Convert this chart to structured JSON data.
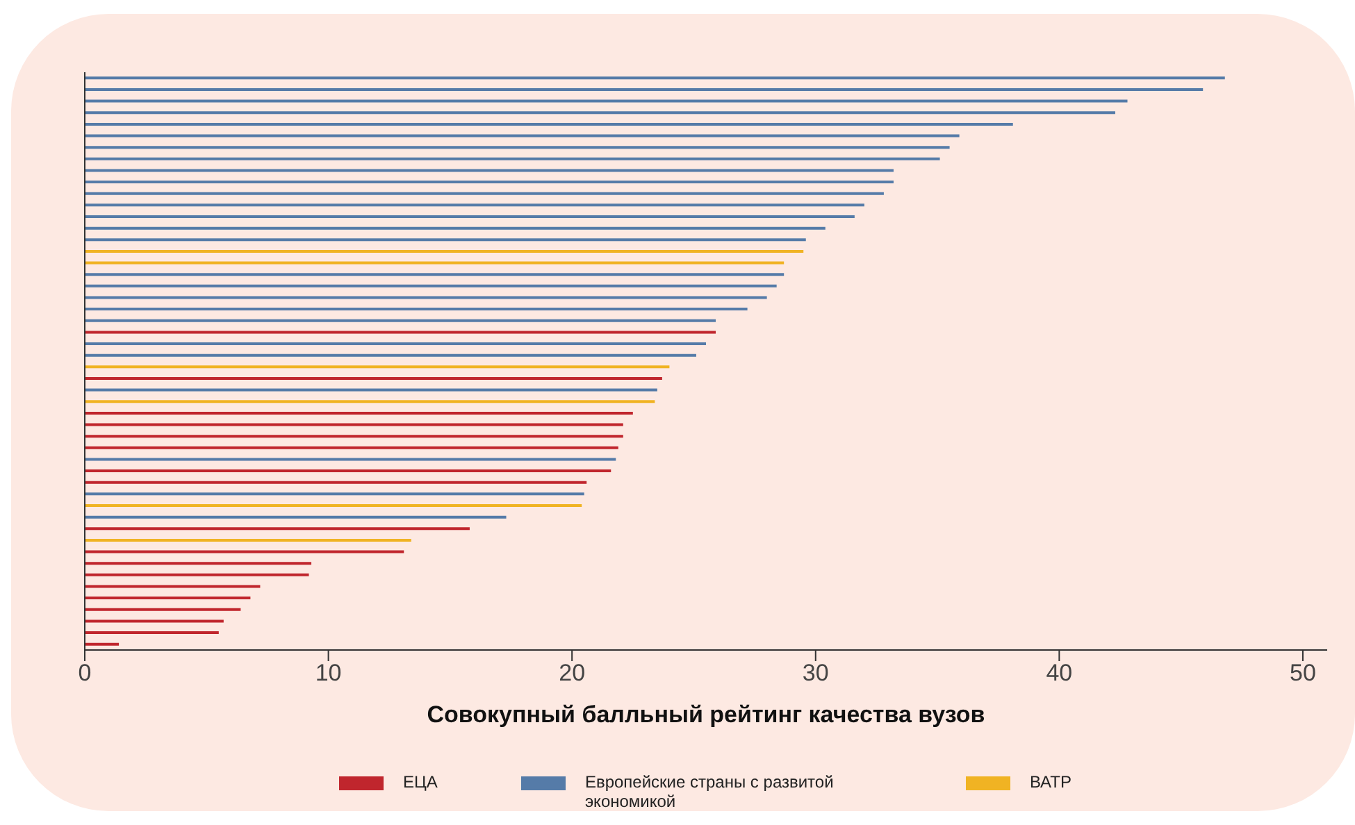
{
  "chart_data": {
    "type": "bar",
    "orientation": "horizontal",
    "stacked": true,
    "xlabel": "Совокупный балльный рейтинг качества вузов",
    "categories": [
      null,
      null,
      null,
      null,
      null,
      null,
      null,
      null,
      null,
      null,
      null,
      null,
      null,
      null,
      null,
      null,
      null,
      null,
      null,
      null,
      null,
      null,
      null,
      null,
      null,
      null,
      null,
      null,
      null,
      null,
      null,
      null,
      null,
      null,
      null,
      null,
      null,
      null,
      null,
      null,
      null,
      null,
      null,
      null,
      null,
      null,
      null,
      null,
      null,
      null
    ],
    "series": [
      {
        "name": "ЕЦА",
        "color": "#c0262d",
        "values": [
          null,
          null,
          null,
          null,
          null,
          null,
          null,
          null,
          null,
          null,
          null,
          null,
          null,
          null,
          null,
          null,
          null,
          null,
          null,
          null,
          null,
          null,
          25.9,
          null,
          null,
          null,
          23.7,
          null,
          null,
          22.5,
          22.1,
          22.1,
          21.9,
          null,
          21.6,
          20.6,
          null,
          null,
          null,
          15.8,
          null,
          13.1,
          9.3,
          9.2,
          7.2,
          6.8,
          6.4,
          5.7,
          5.5,
          1.4
        ]
      },
      {
        "name": "Европейские страны с развитой экономикой",
        "color": "#557ba8",
        "values": [
          46.8,
          45.9,
          42.8,
          42.3,
          38.1,
          35.9,
          35.5,
          35.1,
          33.2,
          33.2,
          32.8,
          32.0,
          31.6,
          30.4,
          29.6,
          null,
          null,
          28.7,
          28.4,
          28.0,
          27.2,
          25.9,
          null,
          25.5,
          25.1,
          null,
          null,
          23.5,
          null,
          null,
          null,
          null,
          null,
          21.8,
          null,
          null,
          20.5,
          null,
          17.3,
          null,
          null,
          null,
          null,
          null,
          null,
          null,
          null,
          null,
          null,
          null
        ]
      },
      {
        "name": "ВАТР",
        "color": "#f0b323",
        "values": [
          null,
          null,
          null,
          null,
          null,
          null,
          null,
          null,
          null,
          null,
          null,
          null,
          null,
          null,
          null,
          29.5,
          28.7,
          null,
          null,
          null,
          null,
          null,
          null,
          null,
          null,
          24.0,
          null,
          null,
          23.4,
          null,
          null,
          null,
          null,
          null,
          null,
          null,
          null,
          20.4,
          null,
          null,
          13.4,
          null,
          null,
          null,
          null,
          null,
          null,
          null,
          null,
          null
        ]
      }
    ],
    "xlim": [
      0,
      51
    ],
    "xticks": [
      0,
      10,
      20,
      30,
      40,
      50
    ],
    "grid": false,
    "legend": "bottom",
    "tick_labels": "x"
  }
}
